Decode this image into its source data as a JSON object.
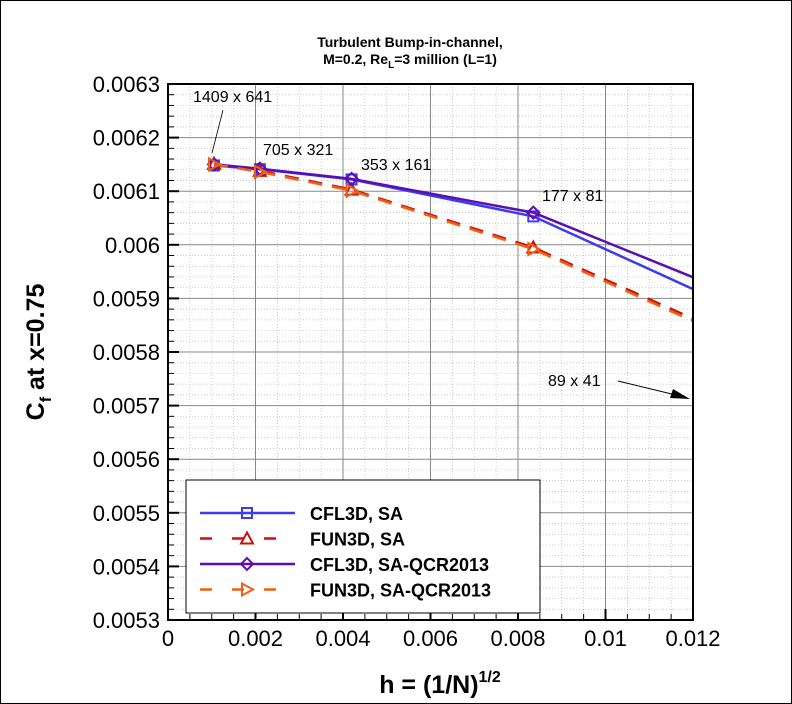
{
  "chart_data": {
    "type": "line",
    "title_line1": "Turbulent Bump-in-channel,",
    "title_line2_prefix": "M=0.2, Re",
    "title_line2_sub": "L",
    "title_line2_suffix": "=3 million (L=1)",
    "xlabel_main": "h = (1/N)",
    "xlabel_sup": "1/2",
    "ylabel_main": "C",
    "ylabel_sub": "f",
    "ylabel_rest": " at x=0.75",
    "xlim": [
      0,
      0.012
    ],
    "ylim": [
      0.0053,
      0.0063
    ],
    "xticks": [
      "0",
      "0.002",
      "0.004",
      "0.006",
      "0.008",
      "0.01",
      "0.012"
    ],
    "yticks": [
      "0.0053",
      "0.0054",
      "0.0055",
      "0.0056",
      "0.0057",
      "0.0058",
      "0.0059",
      "0.006",
      "0.0061",
      "0.0062",
      "0.0063"
    ],
    "grid": true,
    "legend_position": "bottom-left",
    "x": [
      0.001052,
      0.0021,
      0.004196,
      0.00835,
      0.01656
    ],
    "series": [
      {
        "name": "CFL3D, SA",
        "color": "#3b3bf0",
        "dash": false,
        "marker": "square",
        "values": [
          0.006148,
          0.006141,
          0.006122,
          0.006053,
          0.005748
        ]
      },
      {
        "name": "FUN3D, SA",
        "color": "#cc1010",
        "dash": true,
        "marker": "triangle",
        "values": [
          0.006151,
          0.006138,
          0.006103,
          0.005995,
          0.005696
        ]
      },
      {
        "name": "CFL3D, SA-QCR2013",
        "color": "#5a0fb0",
        "dash": false,
        "marker": "diamond",
        "values": [
          0.00615,
          0.006142,
          0.006123,
          0.00606,
          0.005789
        ]
      },
      {
        "name": "FUN3D, SA-QCR2013",
        "color": "#f06010",
        "dash": true,
        "marker": "triangle-right",
        "values": [
          0.00615,
          0.006136,
          0.006101,
          0.005992,
          0.00569
        ]
      }
    ],
    "annotations": [
      "1409 x 641",
      "705 x 321",
      "353 x 161",
      "177 x 81",
      "89 x 41"
    ]
  }
}
